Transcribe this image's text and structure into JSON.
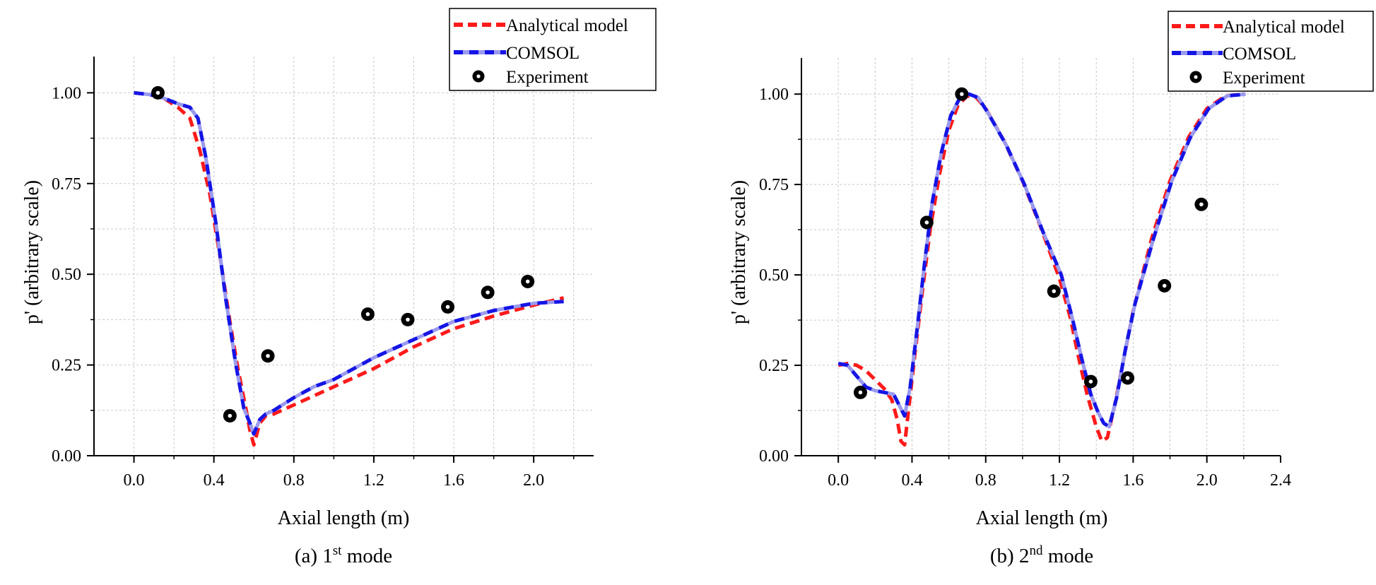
{
  "legend": {
    "analytical": "Analytical model",
    "comsol": "COMSOL",
    "experiment": "Experiment"
  },
  "colors": {
    "analytical": "#ff1a1a",
    "comsol_main": "#1515e6",
    "comsol_light": "#9a9aee",
    "experiment": "#000000"
  },
  "chart_data": [
    {
      "type": "line",
      "caption_prefix": "(a) 1",
      "caption_sup": "st",
      "caption_suffix": " mode",
      "xlabel": "Axial length (m)",
      "ylabel": "p' (arbitrary scale)",
      "xlim": [
        -0.2,
        2.3
      ],
      "ylim": [
        0,
        1.1
      ],
      "xticks": [
        0.0,
        0.4,
        0.8,
        1.2,
        1.6,
        2.0
      ],
      "xtick_labels": [
        "0.0",
        "0.4",
        "0.8",
        "1.2",
        "1.6",
        "2.0"
      ],
      "yticks": [
        0.0,
        0.25,
        0.5,
        0.75,
        1.0
      ],
      "ytick_labels": [
        "0.00",
        "0.25",
        "0.50",
        "0.75",
        "1.00"
      ],
      "grid": true,
      "legend_position": "top-right",
      "series": [
        {
          "name": "Analytical model",
          "style": "dashed",
          "x": [
            0.0,
            0.08,
            0.15,
            0.22,
            0.28,
            0.33,
            0.38,
            0.43,
            0.48,
            0.52,
            0.56,
            0.58,
            0.6,
            0.63,
            0.66,
            0.7,
            0.8,
            1.0,
            1.2,
            1.4,
            1.6,
            1.8,
            2.0,
            2.15
          ],
          "y": [
            1.0,
            0.995,
            0.985,
            0.96,
            0.93,
            0.84,
            0.72,
            0.55,
            0.37,
            0.24,
            0.13,
            0.07,
            0.03,
            0.09,
            0.11,
            0.115,
            0.14,
            0.19,
            0.24,
            0.3,
            0.35,
            0.385,
            0.415,
            0.435
          ]
        },
        {
          "name": "COMSOL",
          "style": "dashed",
          "x": [
            0.0,
            0.08,
            0.15,
            0.22,
            0.28,
            0.32,
            0.36,
            0.41,
            0.46,
            0.51,
            0.55,
            0.58,
            0.6,
            0.63,
            0.66,
            0.7,
            0.8,
            0.9,
            1.0,
            1.2,
            1.4,
            1.6,
            1.8,
            2.0,
            2.15
          ],
          "y": [
            1.0,
            0.995,
            0.985,
            0.97,
            0.96,
            0.93,
            0.82,
            0.64,
            0.43,
            0.25,
            0.13,
            0.09,
            0.06,
            0.1,
            0.115,
            0.125,
            0.16,
            0.19,
            0.21,
            0.27,
            0.32,
            0.37,
            0.4,
            0.42,
            0.425
          ]
        },
        {
          "name": "Experiment",
          "style": "markers",
          "x": [
            0.12,
            0.48,
            0.67,
            1.17,
            1.37,
            1.57,
            1.77,
            1.97
          ],
          "y": [
            1.0,
            0.11,
            0.275,
            0.39,
            0.375,
            0.41,
            0.45,
            0.48
          ]
        }
      ]
    },
    {
      "type": "line",
      "caption_prefix": "(b) 2",
      "caption_sup": "nd",
      "caption_suffix": " mode",
      "xlabel": "Axial length (m)",
      "ylabel": "p' (arbitrary scale)",
      "xlim": [
        -0.2,
        2.4
      ],
      "ylim": [
        0,
        1.1
      ],
      "xticks": [
        0.0,
        0.4,
        0.8,
        1.2,
        1.6,
        2.0,
        2.4
      ],
      "xtick_labels": [
        "0.0",
        "0.4",
        "0.8",
        "1.2",
        "1.6",
        "2.0",
        "2.4"
      ],
      "yticks": [
        0.0,
        0.25,
        0.5,
        0.75,
        1.0
      ],
      "ytick_labels": [
        "0.00",
        "0.25",
        "0.50",
        "0.75",
        "1.00"
      ],
      "grid": true,
      "legend_position": "top-right",
      "series": [
        {
          "name": "Analytical model",
          "style": "dashed",
          "x": [
            0.0,
            0.05,
            0.1,
            0.15,
            0.2,
            0.25,
            0.29,
            0.32,
            0.34,
            0.36,
            0.38,
            0.42,
            0.46,
            0.5,
            0.55,
            0.6,
            0.65,
            0.7,
            0.75,
            0.8,
            0.9,
            1.0,
            1.1,
            1.2,
            1.26,
            1.3,
            1.35,
            1.4,
            1.43,
            1.46,
            1.5,
            1.55,
            1.6,
            1.7,
            1.8,
            1.9,
            2.0,
            2.1,
            2.2
          ],
          "y": [
            0.25,
            0.255,
            0.25,
            0.235,
            0.21,
            0.185,
            0.155,
            0.1,
            0.04,
            0.03,
            0.12,
            0.3,
            0.47,
            0.63,
            0.78,
            0.9,
            0.97,
            0.995,
            0.99,
            0.96,
            0.87,
            0.76,
            0.63,
            0.49,
            0.38,
            0.28,
            0.17,
            0.08,
            0.04,
            0.05,
            0.14,
            0.27,
            0.4,
            0.6,
            0.76,
            0.88,
            0.96,
            0.995,
            1.0
          ]
        },
        {
          "name": "COMSOL",
          "style": "dashed",
          "x": [
            0.0,
            0.05,
            0.1,
            0.15,
            0.2,
            0.25,
            0.3,
            0.33,
            0.36,
            0.39,
            0.43,
            0.47,
            0.51,
            0.56,
            0.61,
            0.66,
            0.71,
            0.76,
            0.81,
            0.91,
            1.01,
            1.11,
            1.21,
            1.27,
            1.32,
            1.37,
            1.41,
            1.44,
            1.47,
            1.51,
            1.56,
            1.61,
            1.71,
            1.81,
            1.91,
            2.01,
            2.11,
            2.21
          ],
          "y": [
            0.255,
            0.25,
            0.22,
            0.19,
            0.18,
            0.175,
            0.17,
            0.14,
            0.11,
            0.19,
            0.36,
            0.54,
            0.7,
            0.84,
            0.94,
            0.99,
            1.0,
            0.99,
            0.95,
            0.86,
            0.75,
            0.62,
            0.5,
            0.38,
            0.27,
            0.17,
            0.12,
            0.09,
            0.08,
            0.16,
            0.3,
            0.42,
            0.6,
            0.76,
            0.88,
            0.96,
            0.995,
            1.0
          ]
        },
        {
          "name": "Experiment",
          "style": "markers",
          "x": [
            0.12,
            0.48,
            0.67,
            1.17,
            1.37,
            1.57,
            1.77,
            1.97
          ],
          "y": [
            0.175,
            0.645,
            1.0,
            0.455,
            0.205,
            0.215,
            0.47,
            0.695
          ]
        }
      ]
    }
  ]
}
